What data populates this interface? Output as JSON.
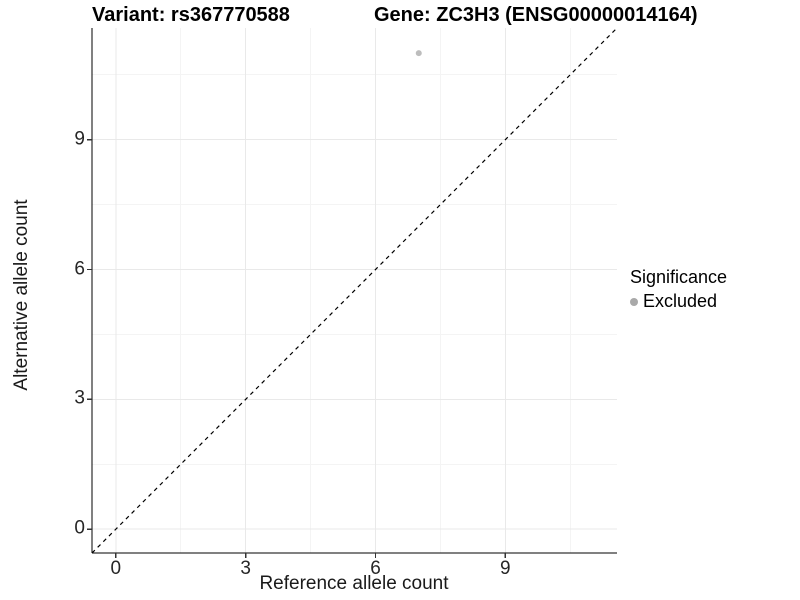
{
  "chart_data": {
    "type": "scatter",
    "title_left": "Variant: rs367770588",
    "title_right": "Gene: ZC3H3 (ENSG00000014164)",
    "xlabel": "Reference allele count",
    "ylabel": "Alternative allele count",
    "xlim": [
      -0.55,
      11.58
    ],
    "ylim": [
      -0.55,
      11.58
    ],
    "xticks": [
      0,
      3,
      6,
      9
    ],
    "yticks": [
      0,
      3,
      6,
      9
    ],
    "minor_xticks": [
      1.5,
      4.5,
      7.5,
      10.5
    ],
    "minor_yticks": [
      1.5,
      4.5,
      7.5,
      10.5
    ],
    "grid": true,
    "points": [
      {
        "x": 7,
        "y": 11,
        "series": "Excluded"
      }
    ],
    "series": [
      {
        "name": "Excluded",
        "color": "#bdbdbd"
      }
    ],
    "reference_line": {
      "type": "identity (y = x)",
      "style": "dashed",
      "color": "#000000"
    },
    "legend": {
      "position": "right",
      "title": "Significance",
      "items": [
        {
          "label": "Excluded",
          "color": "#a9a9a9"
        }
      ]
    }
  }
}
